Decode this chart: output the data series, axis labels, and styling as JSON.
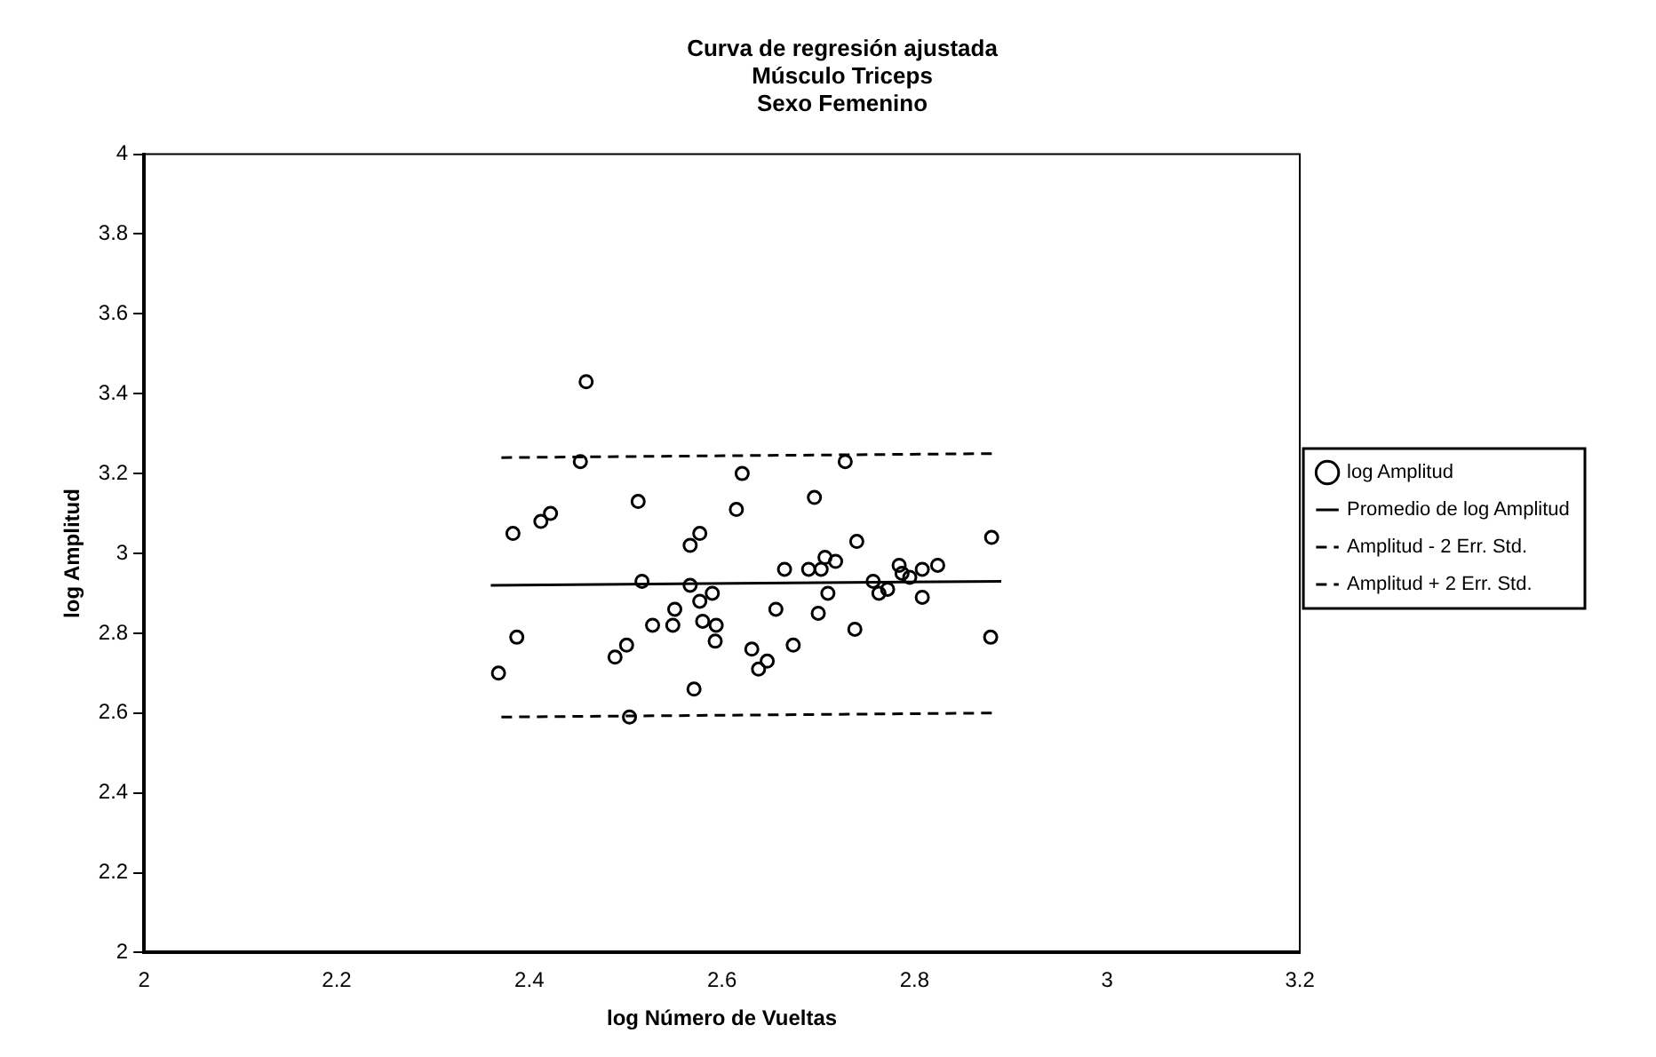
{
  "chart_data": {
    "type": "scatter",
    "title": "Curva de regresión ajustada\nMúsculo Triceps\nSexo Femenino",
    "xlabel": "log Número de Vueltas",
    "ylabel": "log Amplitud",
    "xlim": [
      2,
      3.2
    ],
    "xticks": [
      2,
      2.2,
      2.4,
      2.6,
      2.8,
      3,
      3.2
    ],
    "ylim": [
      2,
      4
    ],
    "yticks": [
      2,
      2.2,
      2.4,
      2.6,
      2.8,
      3,
      3.2,
      3.4,
      3.6,
      3.8,
      4
    ],
    "grid": false,
    "legend": "right",
    "series": [
      {
        "name": "log Amplitud",
        "type": "scatter",
        "marker": "circle",
        "color": "#000000",
        "x": [
          2.368,
          2.383,
          2.387,
          2.412,
          2.422,
          2.459,
          2.453,
          2.513,
          2.517,
          2.489,
          2.501,
          2.504,
          2.528,
          2.549,
          2.551,
          2.567,
          2.577,
          2.567,
          2.577,
          2.59,
          2.58,
          2.594,
          2.593,
          2.571,
          2.615,
          2.621,
          2.631,
          2.638,
          2.647,
          2.656,
          2.665,
          2.674,
          2.69,
          2.696,
          2.7,
          2.703,
          2.707,
          2.718,
          2.71,
          2.728,
          2.738,
          2.74,
          2.757,
          2.763,
          2.772,
          2.784,
          2.787,
          2.795,
          2.808,
          2.808,
          2.824,
          2.879,
          2.88
        ],
        "values": [
          2.7,
          3.05,
          2.79,
          3.08,
          3.1,
          3.43,
          3.23,
          3.13,
          2.93,
          2.74,
          2.77,
          2.59,
          2.82,
          2.82,
          2.86,
          3.02,
          3.05,
          2.92,
          2.88,
          2.9,
          2.83,
          2.82,
          2.78,
          2.66,
          3.11,
          3.2,
          2.76,
          2.71,
          2.73,
          2.86,
          2.96,
          2.77,
          2.96,
          3.14,
          2.85,
          2.96,
          2.99,
          2.98,
          2.9,
          3.23,
          2.81,
          3.03,
          2.93,
          2.9,
          2.91,
          2.97,
          2.95,
          2.94,
          2.89,
          2.96,
          2.97,
          2.79,
          3.04
        ]
      },
      {
        "name": "Promedio de log Amplitud",
        "type": "line",
        "marker": "none",
        "line_style": "solid",
        "color": "#000000",
        "x": [
          2.36,
          2.89
        ],
        "values": [
          2.92,
          2.93
        ]
      },
      {
        "name": "Amplitud - 2 Err. Std.",
        "type": "line",
        "marker": "none",
        "line_style": "dashed",
        "color": "#000000",
        "x": [
          2.371,
          2.882
        ],
        "values": [
          2.59,
          2.6
        ]
      },
      {
        "name": "Amplitud + 2 Err. Std.",
        "type": "line",
        "marker": "none",
        "line_style": "dashed",
        "color": "#000000",
        "x": [
          2.371,
          2.882
        ],
        "values": [
          3.24,
          3.25
        ]
      }
    ]
  }
}
